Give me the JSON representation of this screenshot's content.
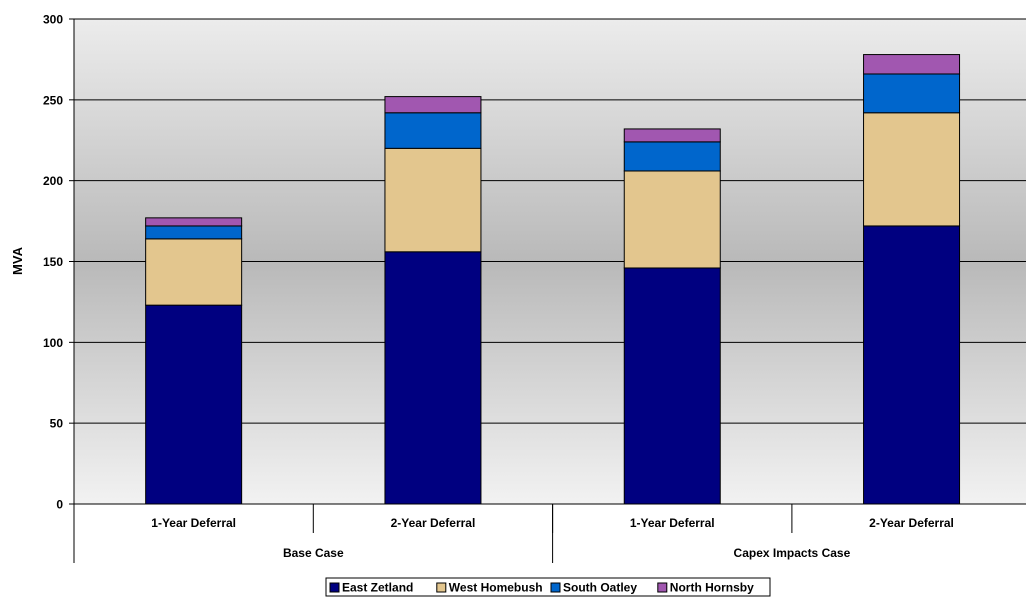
{
  "chart_data": {
    "type": "bar",
    "stacked": true,
    "ylabel": "MVA",
    "ylim": [
      0,
      300
    ],
    "yticks": [
      0,
      50,
      100,
      150,
      200,
      250,
      300
    ],
    "grid": true,
    "legend_position": "bottom",
    "categories": [
      "1-Year Deferral",
      "2-Year Deferral",
      "1-Year Deferral",
      "2-Year Deferral"
    ],
    "groups": [
      {
        "label": "Base Case",
        "span": 2
      },
      {
        "label": "Capex Impacts Case",
        "span": 2
      }
    ],
    "series": [
      {
        "name": "East Zetland",
        "color": "#000080",
        "values": [
          123,
          156,
          146,
          172
        ]
      },
      {
        "name": "West Homebush",
        "color": "#E3C68E",
        "values": [
          41,
          64,
          60,
          70
        ]
      },
      {
        "name": "South Oatley",
        "color": "#0066CC",
        "values": [
          8,
          22,
          18,
          24
        ]
      },
      {
        "name": "North Hornsby",
        "color": "#A157B0",
        "values": [
          5,
          10,
          8,
          12
        ]
      }
    ]
  }
}
